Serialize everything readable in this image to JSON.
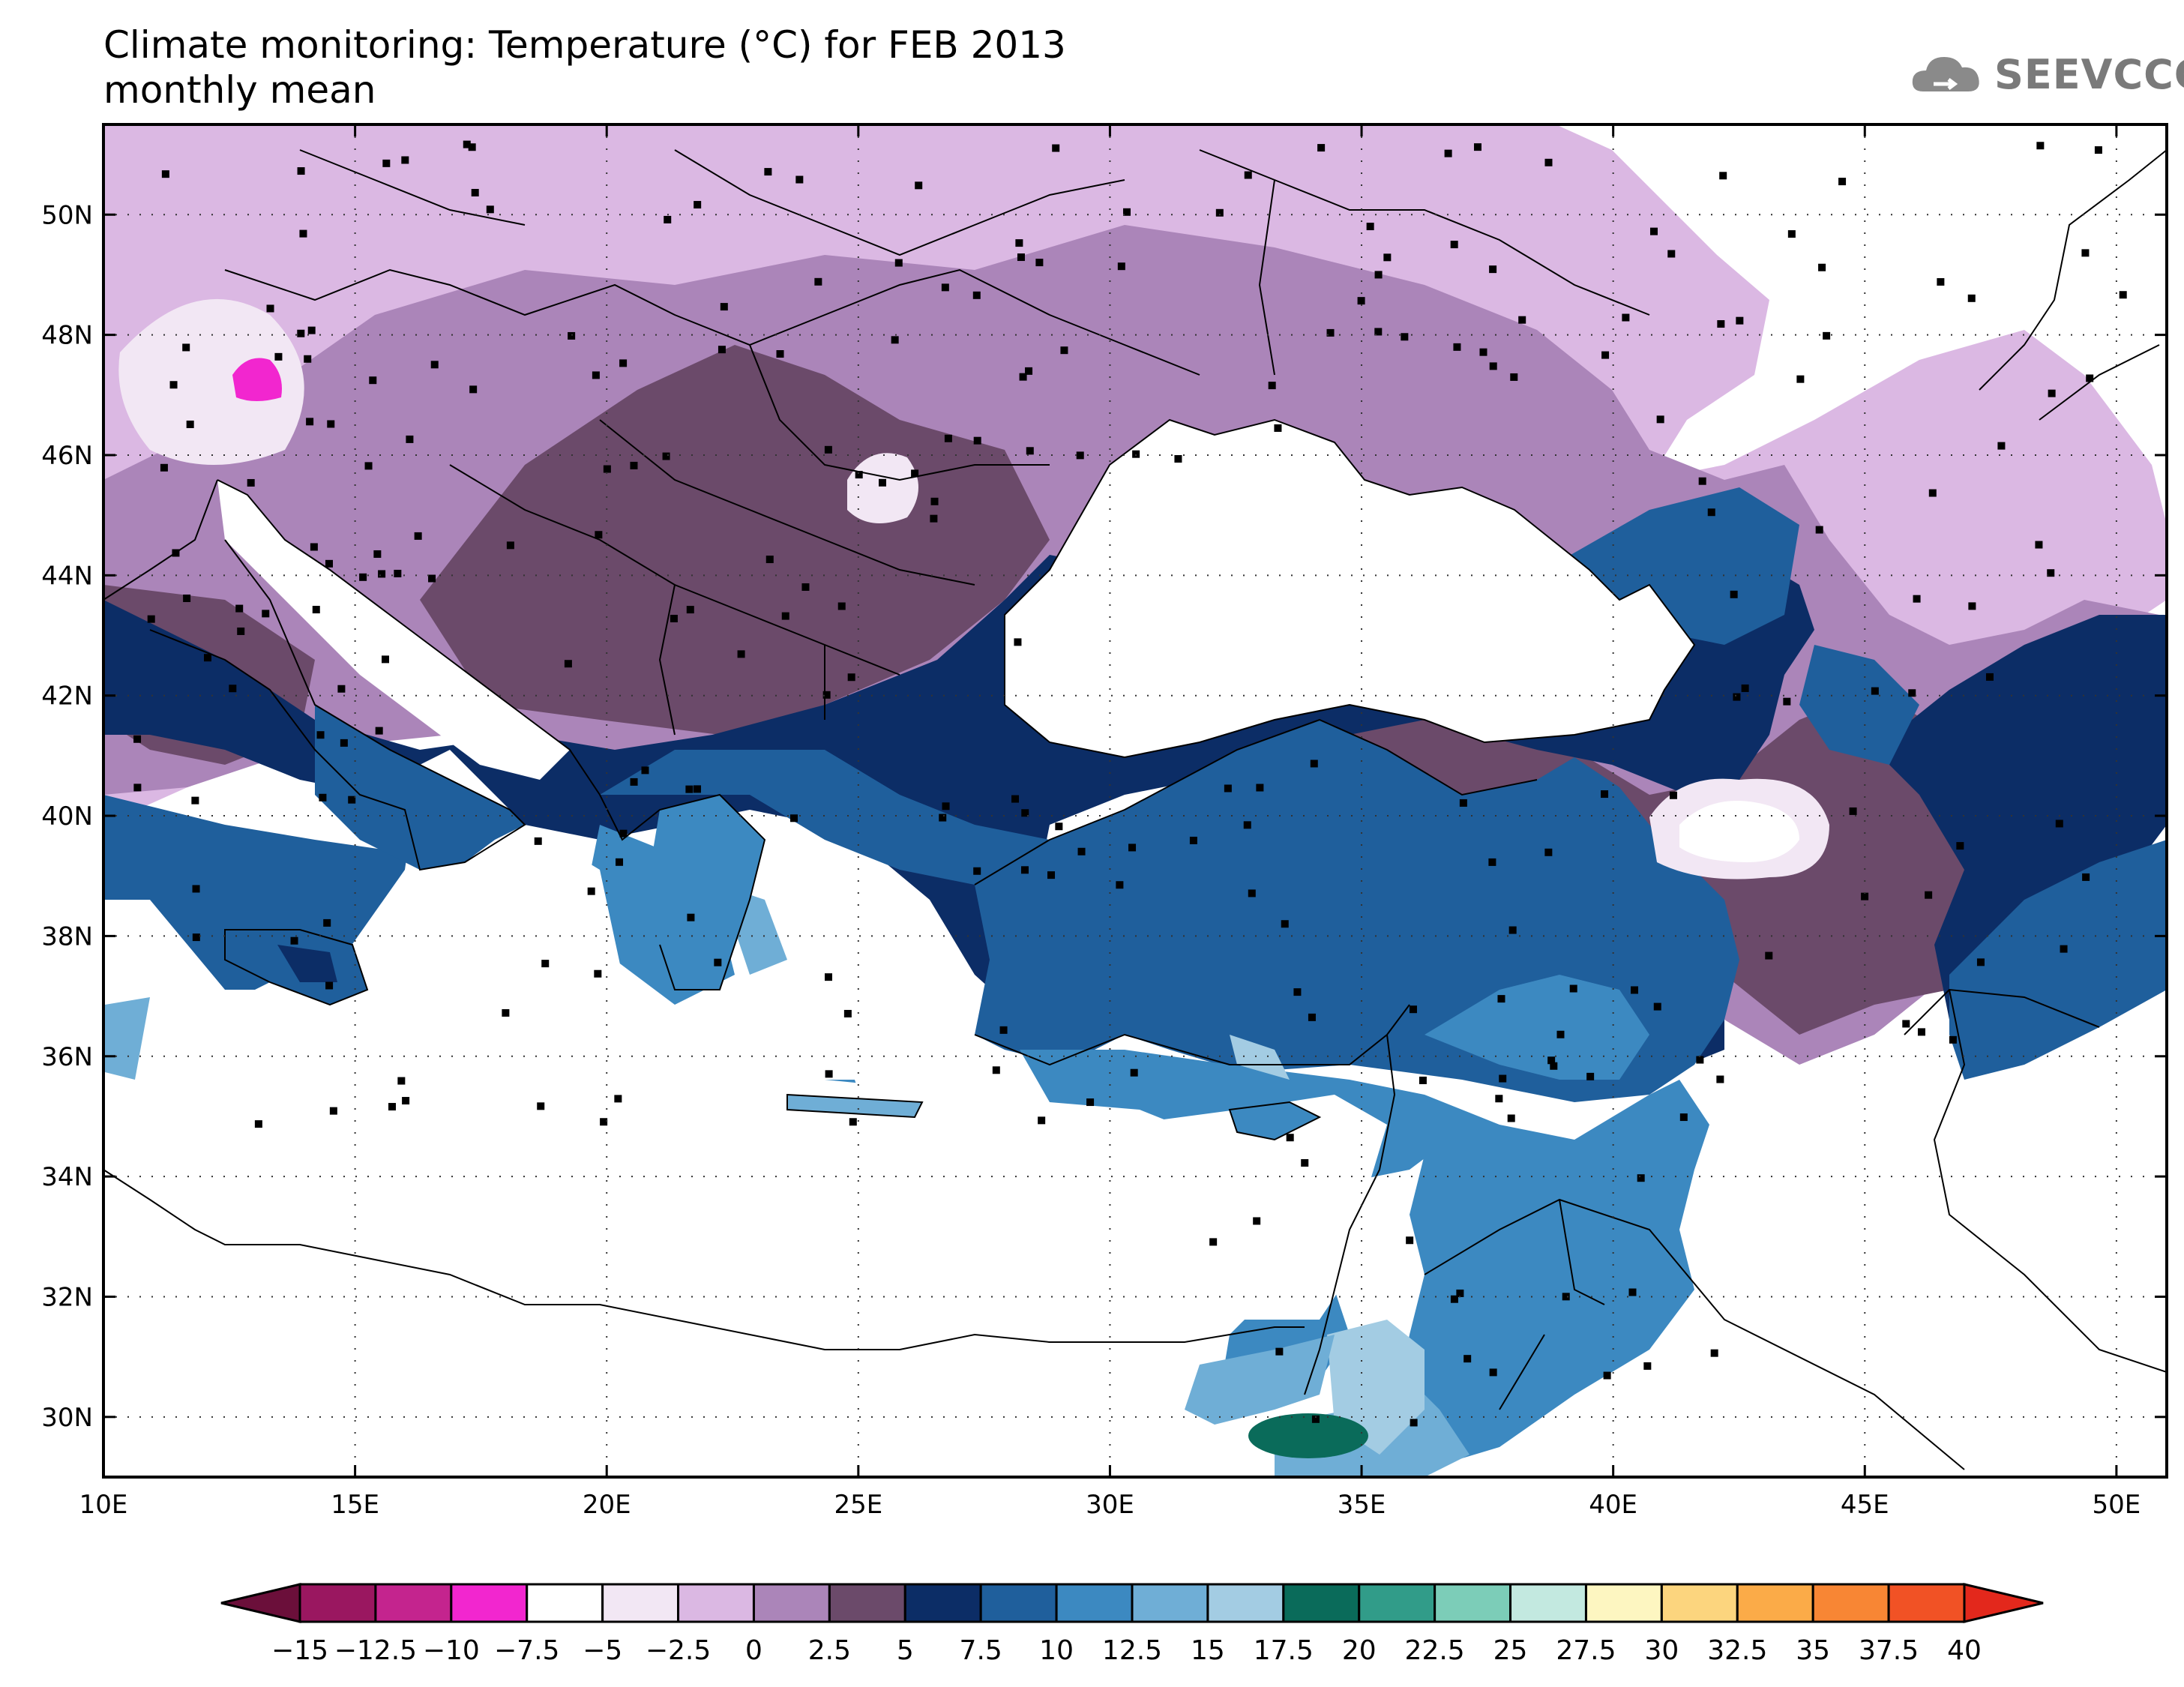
{
  "title": {
    "line1": "Climate monitoring: Temperature (°C) for FEB 2013",
    "line2": "monthly mean"
  },
  "logo": {
    "text": "SEEVCCC",
    "icon": "cloud-icon"
  },
  "map": {
    "lon_range": [
      10,
      51
    ],
    "lat_range": [
      29,
      51.5
    ],
    "x_ticks": [
      "10E",
      "15E",
      "20E",
      "25E",
      "30E",
      "35E",
      "40E",
      "45E",
      "50E"
    ],
    "y_ticks": [
      "30N",
      "32N",
      "34N",
      "36N",
      "38N",
      "40N",
      "42N",
      "44N",
      "46N",
      "48N",
      "50N"
    ],
    "grid": "dotted"
  },
  "colorbar": {
    "labels": [
      "−15",
      "−12.5",
      "−10",
      "−7.5",
      "−5",
      "−2.5",
      "0",
      "2.5",
      "5",
      "7.5",
      "10",
      "12.5",
      "15",
      "17.5",
      "20",
      "22.5",
      "25",
      "27.5",
      "30",
      "32.5",
      "35",
      "37.5",
      "40"
    ],
    "low_arrow_color": "#6b0f3a",
    "high_arrow_color": "#e3281c",
    "colors": [
      "#9a1760",
      "#c4248e",
      "#f226cf",
      "#ffffff",
      "#f2e7f4",
      "#dbb8e3",
      "#ab85b9",
      "#6b4a6a",
      "#0c2d66",
      "#1f5f9c",
      "#3c89c1",
      "#6faed6",
      "#a3cce3",
      "#0a6b5a",
      "#319c89",
      "#7ccdb8",
      "#c3e9e0",
      "#fdf6c1",
      "#fcd57e",
      "#fbab48",
      "#f88634",
      "#f15225"
    ]
  }
}
